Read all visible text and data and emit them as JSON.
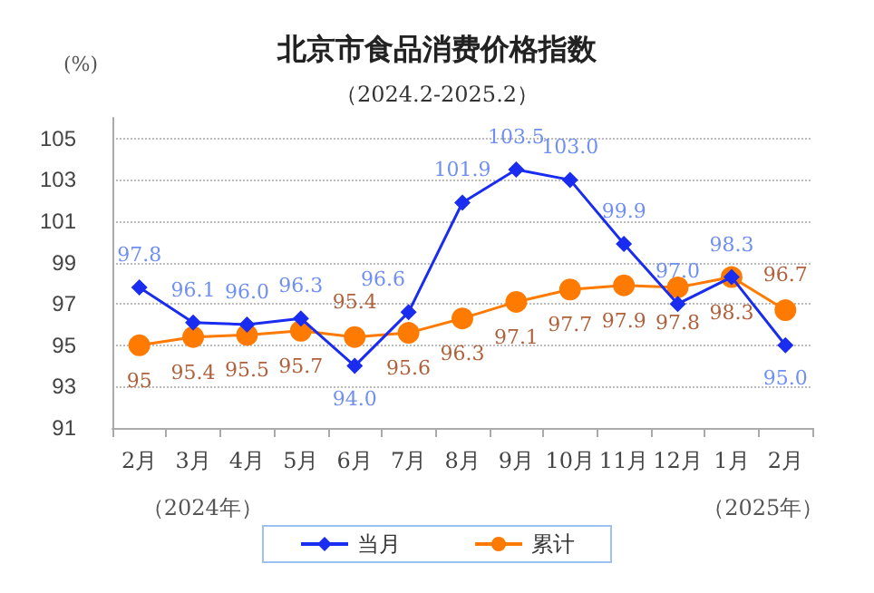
{
  "chart_data": {
    "type": "line",
    "title": "北京市食品消费价格指数",
    "subtitle": "（2024.2-2025.2）",
    "ylabel": "(%)",
    "annotations": [
      "（2024年）",
      "（2025年）"
    ],
    "categories": [
      "2月",
      "3月",
      "4月",
      "5月",
      "6月",
      "7月",
      "8月",
      "9月",
      "10月",
      "11月",
      "12月",
      "1月",
      "2月"
    ],
    "series": [
      {
        "name": "当月",
        "color": "#1a2cf0",
        "marker": "diamond",
        "values": [
          97.8,
          96.1,
          96.0,
          96.3,
          94.0,
          96.6,
          101.9,
          103.5,
          103.0,
          99.9,
          97.0,
          98.3,
          95.0
        ],
        "value_labels": [
          "97.8",
          "96.1",
          "96.0",
          "96.3",
          "94.0",
          "96.6",
          "101.9",
          "103.5",
          "103.0",
          "99.9",
          "97.0",
          "98.3",
          "95.0"
        ]
      },
      {
        "name": "累计",
        "color": "#ff7a00",
        "marker": "circle",
        "values": [
          95.0,
          95.4,
          95.5,
          95.7,
          95.4,
          95.6,
          96.3,
          97.1,
          97.7,
          97.9,
          97.8,
          98.3,
          96.7
        ],
        "value_labels": [
          "95",
          "95.4",
          "95.5",
          "95.7",
          "95.4",
          "95.6",
          "96.3",
          "97.1",
          "97.7",
          "97.9",
          "97.8",
          "98.3",
          "96.7"
        ]
      }
    ],
    "ylim": [
      91,
      106
    ],
    "yticks": [
      91,
      93,
      95,
      97,
      99,
      101,
      103,
      105
    ],
    "grid": "y",
    "legend": "bottom"
  }
}
